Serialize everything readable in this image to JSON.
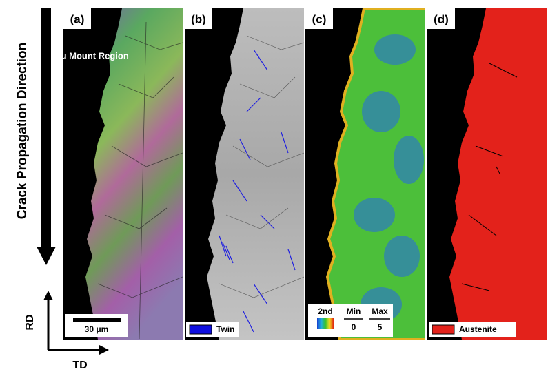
{
  "arrow_label": "Crack Propagation Direction",
  "panels": [
    {
      "label": "(a)",
      "annotation": "Cu Mount Region",
      "legend": {
        "scale": "30 μm"
      }
    },
    {
      "label": "(b)",
      "legend": {
        "name": "Twin"
      }
    },
    {
      "label": "(c)",
      "legend": {
        "title": "2nd",
        "min_label": "Min",
        "min": 0,
        "max_label": "Max",
        "max": 5
      }
    },
    {
      "label": "(d)",
      "legend": {
        "name": "Austenite"
      }
    }
  ],
  "axes": {
    "vertical": "RD",
    "horizontal": "TD"
  }
}
